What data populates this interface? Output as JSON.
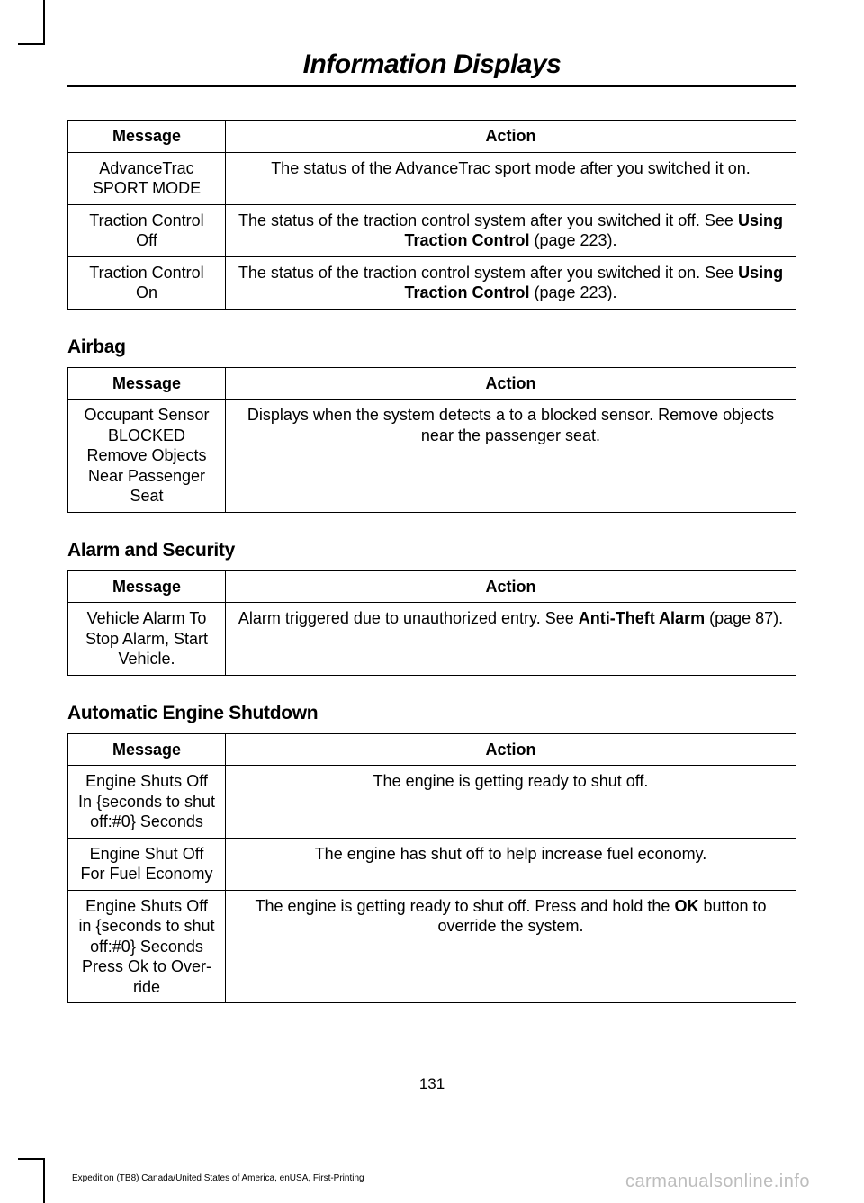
{
  "chapter_title": "Information Displays",
  "tables": {
    "advancetrac": {
      "headers": [
        "Message",
        "Action"
      ],
      "rows": [
        {
          "msg": "AdvanceTrac SPORT MODE",
          "action_plain": "The status of the AdvanceTrac sport mode after you switched it on."
        },
        {
          "msg": "Traction Control Off",
          "action_pre": "The status of the traction control system after you switched it off. See ",
          "action_bold": "Using Traction Control",
          "action_post": " (page 223)."
        },
        {
          "msg": "Traction Control On",
          "action_pre": "The status of the traction control system after you switched it on. See ",
          "action_bold": "Using Traction Control",
          "action_post": " (page 223)."
        }
      ]
    },
    "airbag": {
      "title": "Airbag",
      "headers": [
        "Message",
        "Action"
      ],
      "rows": [
        {
          "msg": "Occupant Sensor BLOCKED Remove Objects Near Passenger Seat",
          "action_plain": "Displays when the system detects a to a blocked sensor. Remove objects near the passenger seat."
        }
      ]
    },
    "alarm": {
      "title": "Alarm and Security",
      "headers": [
        "Message",
        "Action"
      ],
      "rows": [
        {
          "msg": "Vehicle Alarm To Stop Alarm, Start Vehicle.",
          "action_pre": "Alarm triggered due to unauthorized entry.  See ",
          "action_bold": "Anti-Theft Alarm",
          "action_post": " (page 87)."
        }
      ]
    },
    "shutdown": {
      "title": "Automatic Engine Shutdown",
      "headers": [
        "Message",
        "Action"
      ],
      "rows": [
        {
          "msg": "Engine Shuts Off In {seconds to shut off:#0} Seconds",
          "action_plain": "The engine is getting ready to shut off."
        },
        {
          "msg": "Engine Shut Off For Fuel Economy",
          "action_plain": "The engine has shut off to help increase fuel economy."
        },
        {
          "msg": "Engine Shuts Off in {seconds to shut off:#0} Seconds Press Ok to Over-ride",
          "action_pre": "The engine is getting ready to shut off.  Press and hold the ",
          "action_bold": "OK",
          "action_post": " button to override the system."
        }
      ]
    }
  },
  "page_number": "131",
  "footer_left": "Expedition (TB8) Canada/United States of America, enUSA, First-Printing",
  "footer_right": "carmanualsonline.info"
}
